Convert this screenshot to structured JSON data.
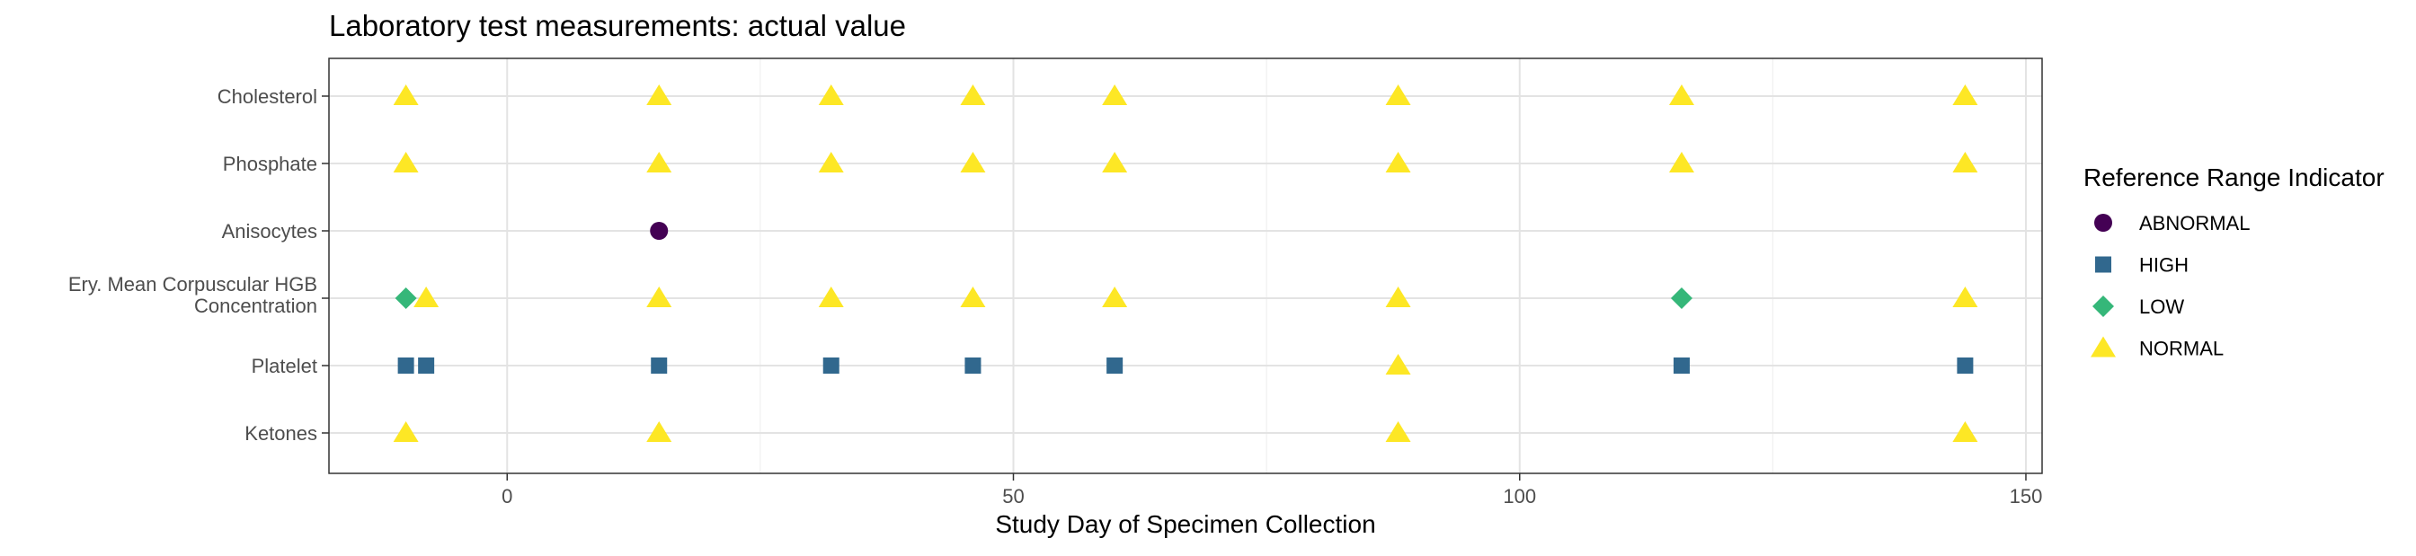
{
  "chart_data": {
    "type": "scatter",
    "title": "Laboratory test measurements: actual value",
    "xlabel": "Study Day of Specimen Collection",
    "ylabel": "",
    "xlim": [
      -17.6,
      151.6
    ],
    "xticks": [
      0,
      50,
      100,
      150
    ],
    "x_tick_labels": [
      "0",
      "50",
      "100",
      "150"
    ],
    "grid": true,
    "legend_position": "right",
    "categories": [
      "Cholesterol",
      "Phosphate",
      "Anisocytes",
      "Ery. Mean Corpuscular HGB Concentration",
      "Platelet",
      "Ketones"
    ],
    "category_labels": [
      [
        "Cholesterol"
      ],
      [
        "Phosphate"
      ],
      [
        "Anisocytes"
      ],
      [
        "Ery. Mean Corpuscular HGB",
        "Concentration"
      ],
      [
        "Platelet"
      ],
      [
        "Ketones"
      ]
    ],
    "legend_title": "Reference Range Indicator",
    "series": [
      {
        "name": "ABNORMAL",
        "color": "#440154",
        "shape": "circle",
        "points": [
          {
            "x": 15,
            "y": "Anisocytes"
          }
        ]
      },
      {
        "name": "HIGH",
        "color": "#31688E",
        "shape": "square",
        "points": [
          {
            "x": -10,
            "y": "Platelet"
          },
          {
            "x": -8,
            "y": "Platelet"
          },
          {
            "x": 15,
            "y": "Platelet"
          },
          {
            "x": 32,
            "y": "Platelet"
          },
          {
            "x": 46,
            "y": "Platelet"
          },
          {
            "x": 60,
            "y": "Platelet"
          },
          {
            "x": 116,
            "y": "Platelet"
          },
          {
            "x": 144,
            "y": "Platelet"
          }
        ]
      },
      {
        "name": "LOW",
        "color": "#35B779",
        "shape": "diamond",
        "points": [
          {
            "x": -10,
            "y": "Ery. Mean Corpuscular HGB Concentration"
          },
          {
            "x": 116,
            "y": "Ery. Mean Corpuscular HGB Concentration"
          }
        ]
      },
      {
        "name": "NORMAL",
        "color": "#FDE725",
        "shape": "triangle",
        "points": [
          {
            "x": -10,
            "y": "Cholesterol"
          },
          {
            "x": 15,
            "y": "Cholesterol"
          },
          {
            "x": 32,
            "y": "Cholesterol"
          },
          {
            "x": 46,
            "y": "Cholesterol"
          },
          {
            "x": 60,
            "y": "Cholesterol"
          },
          {
            "x": 88,
            "y": "Cholesterol"
          },
          {
            "x": 116,
            "y": "Cholesterol"
          },
          {
            "x": 144,
            "y": "Cholesterol"
          },
          {
            "x": -10,
            "y": "Phosphate"
          },
          {
            "x": 15,
            "y": "Phosphate"
          },
          {
            "x": 32,
            "y": "Phosphate"
          },
          {
            "x": 46,
            "y": "Phosphate"
          },
          {
            "x": 60,
            "y": "Phosphate"
          },
          {
            "x": 88,
            "y": "Phosphate"
          },
          {
            "x": 116,
            "y": "Phosphate"
          },
          {
            "x": 144,
            "y": "Phosphate"
          },
          {
            "x": -8,
            "y": "Ery. Mean Corpuscular HGB Concentration"
          },
          {
            "x": 15,
            "y": "Ery. Mean Corpuscular HGB Concentration"
          },
          {
            "x": 32,
            "y": "Ery. Mean Corpuscular HGB Concentration"
          },
          {
            "x": 46,
            "y": "Ery. Mean Corpuscular HGB Concentration"
          },
          {
            "x": 60,
            "y": "Ery. Mean Corpuscular HGB Concentration"
          },
          {
            "x": 88,
            "y": "Ery. Mean Corpuscular HGB Concentration"
          },
          {
            "x": 144,
            "y": "Ery. Mean Corpuscular HGB Concentration"
          },
          {
            "x": 88,
            "y": "Platelet"
          },
          {
            "x": -10,
            "y": "Ketones"
          },
          {
            "x": 15,
            "y": "Ketones"
          },
          {
            "x": 88,
            "y": "Ketones"
          },
          {
            "x": 144,
            "y": "Ketones"
          }
        ]
      }
    ]
  }
}
